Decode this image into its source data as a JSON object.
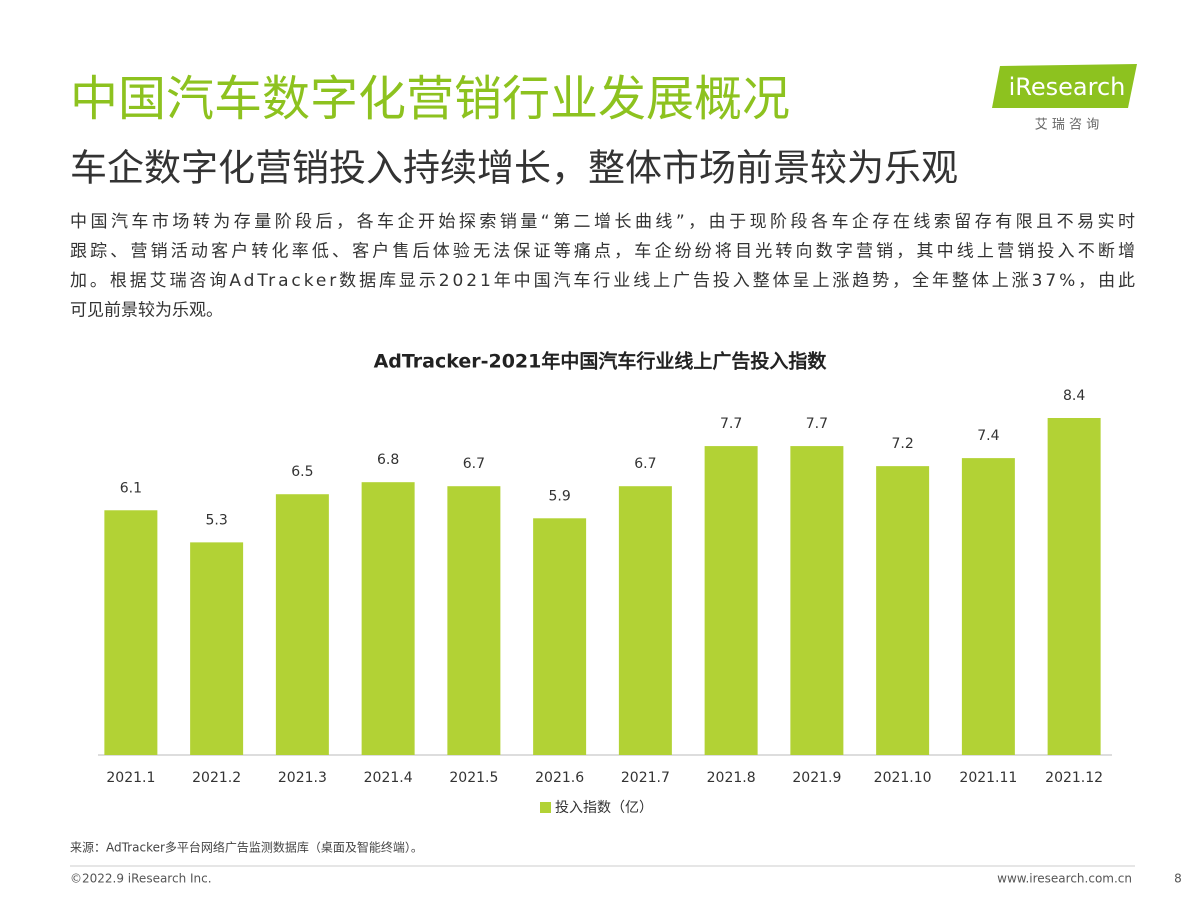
{
  "header": {
    "title": "中国汽车数字化营销行业发展概况",
    "subtitle": "车企数字化营销投入持续增长，整体市场前景较为乐观"
  },
  "logo": {
    "name": "iResearch",
    "tagline": "艾 瑞 咨 询"
  },
  "paragraph": [
    "中国汽车市场转为存量阶段后，各车企开始探索销量“第二增长曲线”，由于现阶段各车企存在线索留存有限且不易实时",
    "跟踪、营销活动客户转化率低、客户售后体验无法保证等痛点，车企纷纷将目光转向数字营销，其中线上营销投入不断增",
    "加。根据艾瑞咨询AdTracker数据库显示2021年中国汽车行业线上广告投入整体呈上涨趋势，全年整体上涨37%，由此",
    "可见前景较为乐观。"
  ],
  "chart_data": {
    "type": "bar",
    "title": "AdTracker-2021年中国汽车行业线上广告投入指数",
    "categories": [
      "2021.1",
      "2021.2",
      "2021.3",
      "2021.4",
      "2021.5",
      "2021.6",
      "2021.7",
      "2021.8",
      "2021.9",
      "2021.10",
      "2021.11",
      "2021.12"
    ],
    "series": [
      {
        "name": "投入指数（亿）",
        "color": "#b2d235",
        "values": [
          6.1,
          5.3,
          6.5,
          6.8,
          6.7,
          5.9,
          6.7,
          7.7,
          7.7,
          7.2,
          7.4,
          8.4
        ]
      }
    ]
  },
  "source": "来源：AdTracker多平台网络广告监测数据库（桌面及智能终端）。",
  "footer": {
    "copyright": "©2022.9 iResearch Inc.",
    "url": "www.iresearch.com.cn",
    "page": "8"
  }
}
